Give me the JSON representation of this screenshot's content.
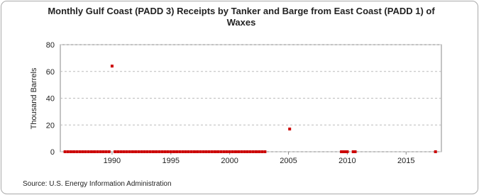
{
  "chart_data": {
    "type": "scatter",
    "title": "Monthly Gulf Coast (PADD 3) Receipts by Tanker and Barge from East Coast (PADD 1) of Waxes",
    "y_label": "Thousand Barrels",
    "source": "Source: U.S. Energy Information Administration",
    "xlim": [
      1985.6,
      2018
    ],
    "xticks": [
      1990,
      1995,
      2000,
      2005,
      2010,
      2015
    ],
    "ylim": [
      0,
      80
    ],
    "yticks": [
      0,
      20,
      40,
      60,
      80
    ],
    "grid": true,
    "series": [
      {
        "color": "#cc0000",
        "x": [
          1986,
          1986.25,
          1986.5,
          1986.75,
          1987,
          1987.25,
          1987.5,
          1987.75,
          1988,
          1988.25,
          1988.5,
          1988.75,
          1989,
          1989.25,
          1989.5,
          1989.75,
          1990,
          1990.25,
          1990.5,
          1990.75,
          1991,
          1991.25,
          1991.5,
          1991.75,
          1992,
          1992.25,
          1992.5,
          1992.75,
          1993,
          1993.25,
          1993.5,
          1993.75,
          1994,
          1994.25,
          1994.5,
          1994.75,
          1995,
          1995.25,
          1995.5,
          1995.75,
          1996,
          1996.25,
          1996.5,
          1996.75,
          1997,
          1997.25,
          1997.5,
          1997.75,
          1998,
          1998.25,
          1998.5,
          1998.75,
          1999,
          1999.25,
          1999.5,
          1999.75,
          2000,
          2000.25,
          2000.5,
          2000.75,
          2001,
          2001.25,
          2001.5,
          2001.75,
          2002,
          2002.25,
          2002.5,
          2002.75,
          2003,
          2005.1,
          2009.5,
          2009.67,
          2009.83,
          2010,
          2010.5,
          2010.67,
          2017.5
        ],
        "values": [
          0,
          0,
          0,
          0,
          0,
          0,
          0,
          0,
          0,
          0,
          0,
          0,
          0,
          0,
          0,
          0,
          64,
          0,
          0,
          0,
          0,
          0,
          0,
          0,
          0,
          0,
          0,
          0,
          0,
          0,
          0,
          0,
          0,
          0,
          0,
          0,
          0,
          0,
          0,
          0,
          0,
          0,
          0,
          0,
          0,
          0,
          0,
          0,
          0,
          0,
          0,
          0,
          0,
          0,
          0,
          0,
          0,
          0,
          0,
          0,
          0,
          0,
          0,
          0,
          0,
          0,
          0,
          0,
          0,
          17,
          0,
          0,
          0,
          0,
          0,
          0,
          0
        ]
      }
    ]
  }
}
